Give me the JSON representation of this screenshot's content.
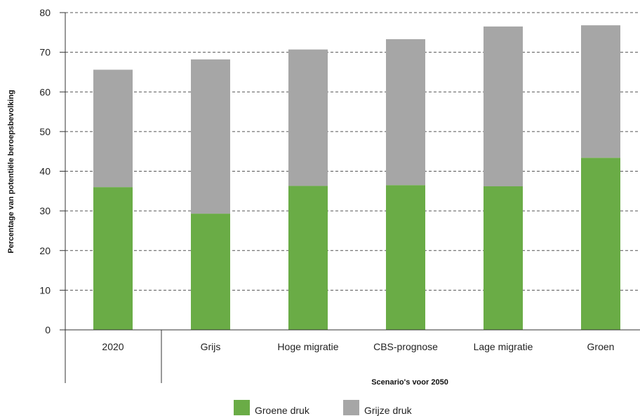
{
  "chart_data": {
    "type": "bar",
    "stacked": true,
    "categories": [
      "2020",
      "Grijs",
      "Hoge migratie",
      "CBS-prognose",
      "Lage migratie",
      "Groen"
    ],
    "group_label": "Scenario's voor 2050",
    "series": [
      {
        "name": "Groene druk",
        "color": "#6aac46",
        "values": [
          36.0,
          29.3,
          36.3,
          36.5,
          36.2,
          43.4
        ]
      },
      {
        "name": "Grijze druk",
        "color": "#a6a6a6",
        "values": [
          29.6,
          38.9,
          34.4,
          36.8,
          40.3,
          33.4
        ]
      }
    ],
    "ylabel": "Percentage van potentiële beroepsbevolking",
    "ylim": [
      0,
      80
    ],
    "yticks": [
      0,
      10,
      20,
      30,
      40,
      50,
      60,
      70,
      80
    ],
    "grid": "horizontal dashed",
    "legend_position": "bottom-center"
  }
}
